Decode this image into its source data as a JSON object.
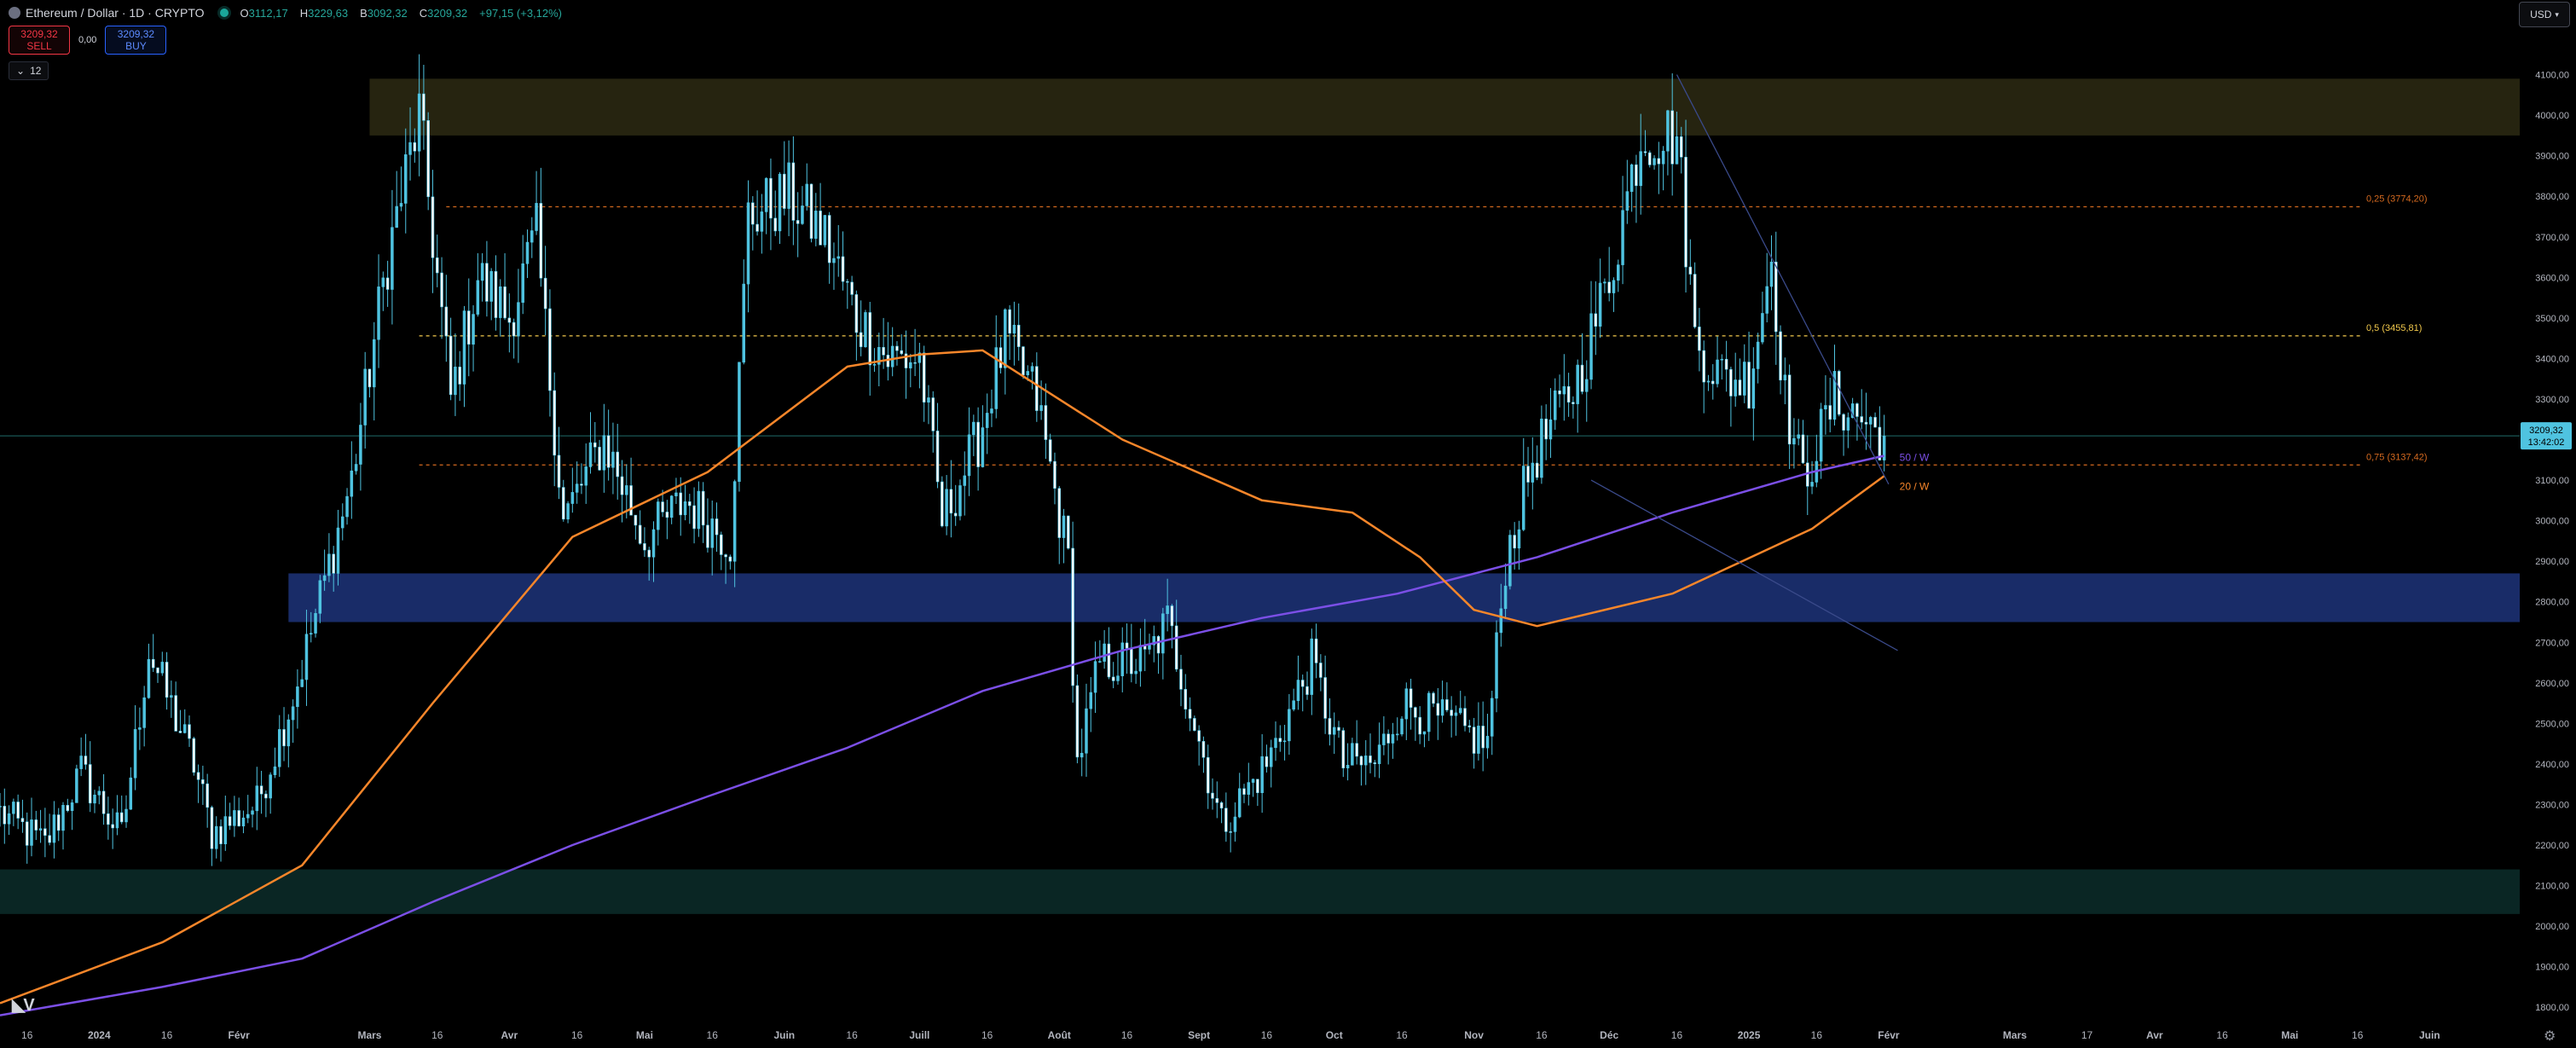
{
  "header": {
    "symbol_title": "Ethereum / Dollar · 1D · CRYPTO",
    "ohlc": [
      {
        "key": "O",
        "value": "3112,17"
      },
      {
        "key": "H",
        "value": "3229,63"
      },
      {
        "key": "B",
        "value": "3092,32"
      },
      {
        "key": "C",
        "value": "3209,32"
      },
      {
        "key": "",
        "value": "+97,15 (+3,12%)"
      }
    ]
  },
  "trade": {
    "sell_price": "3209,32",
    "sell_label": "SELL",
    "spread": "0,00",
    "buy_price": "3209,32",
    "buy_label": "BUY"
  },
  "indicators_toggle": {
    "icon": "chevron-down-icon",
    "count": "12"
  },
  "currency_selector": {
    "label": "USD"
  },
  "colors": {
    "background": "#000000",
    "candle": "#4fc3e0",
    "ma_orange": "#f7862a",
    "ma_purple": "#7b4fe6",
    "zone_top": "#2a2812",
    "zone_mid": "#1a2e6e",
    "zone_bottom": "#0b2a28",
    "fib_025": "#d4691f",
    "fib_05": "#f2c94c",
    "fib_075": "#d4691f",
    "price_badge": "#4fc3e0"
  },
  "chart_data": {
    "type": "candlestick",
    "title": "Ethereum / Dollar · 1D · CRYPTO",
    "ylim": [
      1750,
      4200
    ],
    "x_range": [
      "2023-12-10",
      "2025-06-21"
    ],
    "y_ticks": [
      "1800,00",
      "1900,00",
      "2000,00",
      "2100,00",
      "2200,00",
      "2300,00",
      "2400,00",
      "2500,00",
      "2600,00",
      "2700,00",
      "2800,00",
      "2900,00",
      "3000,00",
      "3100,00",
      "3200,00",
      "3300,00",
      "3400,00",
      "3500,00",
      "3600,00",
      "3700,00",
      "3800,00",
      "3900,00",
      "4000,00",
      "4100,00"
    ],
    "x_ticks": [
      {
        "label": "16",
        "date": "2023-12-16"
      },
      {
        "label": "2024",
        "date": "2024-01-01"
      },
      {
        "label": "16",
        "date": "2024-01-16"
      },
      {
        "label": "Févr",
        "date": "2024-02-01"
      },
      {
        "label": "Mars",
        "date": "2024-03-01"
      },
      {
        "label": "16",
        "date": "2024-03-16"
      },
      {
        "label": "Avr",
        "date": "2024-04-01"
      },
      {
        "label": "16",
        "date": "2024-04-16"
      },
      {
        "label": "Mai",
        "date": "2024-05-01"
      },
      {
        "label": "16",
        "date": "2024-05-16"
      },
      {
        "label": "Juin",
        "date": "2024-06-01"
      },
      {
        "label": "16",
        "date": "2024-06-16"
      },
      {
        "label": "Juill",
        "date": "2024-07-01"
      },
      {
        "label": "16",
        "date": "2024-07-16"
      },
      {
        "label": "Août",
        "date": "2024-08-01"
      },
      {
        "label": "16",
        "date": "2024-08-16"
      },
      {
        "label": "Sept",
        "date": "2024-09-01"
      },
      {
        "label": "16",
        "date": "2024-09-16"
      },
      {
        "label": "Oct",
        "date": "2024-10-01"
      },
      {
        "label": "16",
        "date": "2024-10-16"
      },
      {
        "label": "Nov",
        "date": "2024-11-01"
      },
      {
        "label": "16",
        "date": "2024-11-16"
      },
      {
        "label": "Déc",
        "date": "2024-12-01"
      },
      {
        "label": "16",
        "date": "2024-12-16"
      },
      {
        "label": "2025",
        "date": "2025-01-01"
      },
      {
        "label": "16",
        "date": "2025-01-16"
      },
      {
        "label": "Févr",
        "date": "2025-02-01"
      },
      {
        "label": "Mars",
        "date": "2025-03-01"
      },
      {
        "label": "17",
        "date": "2025-03-17"
      },
      {
        "label": "Avr",
        "date": "2025-04-01"
      },
      {
        "label": "16",
        "date": "2025-04-16"
      },
      {
        "label": "Mai",
        "date": "2025-05-01"
      },
      {
        "label": "16",
        "date": "2025-05-16"
      },
      {
        "label": "Juin",
        "date": "2025-06-01"
      }
    ],
    "price_path": [
      [
        "2023-12-10",
        2280
      ],
      [
        "2023-12-20",
        2200
      ],
      [
        "2023-12-28",
        2380
      ],
      [
        "2024-01-06",
        2220
      ],
      [
        "2024-01-12",
        2680
      ],
      [
        "2024-01-22",
        2400
      ],
      [
        "2024-01-26",
        2230
      ],
      [
        "2024-02-05",
        2300
      ],
      [
        "2024-02-14",
        2600
      ],
      [
        "2024-02-26",
        3100
      ],
      [
        "2024-03-05",
        3650
      ],
      [
        "2024-03-12",
        4000
      ],
      [
        "2024-03-19",
        3300
      ],
      [
        "2024-03-25",
        3600
      ],
      [
        "2024-04-01",
        3500
      ],
      [
        "2024-04-07",
        3700
      ],
      [
        "2024-04-13",
        3000
      ],
      [
        "2024-04-22",
        3200
      ],
      [
        "2024-05-01",
        2950
      ],
      [
        "2024-05-10",
        3050
      ],
      [
        "2024-05-20",
        2950
      ],
      [
        "2024-05-24",
        3750
      ],
      [
        "2024-06-02",
        3800
      ],
      [
        "2024-06-10",
        3700
      ],
      [
        "2024-06-17",
        3500
      ],
      [
        "2024-06-24",
        3400
      ],
      [
        "2024-07-01",
        3400
      ],
      [
        "2024-07-06",
        3000
      ],
      [
        "2024-07-14",
        3200
      ],
      [
        "2024-07-20",
        3450
      ],
      [
        "2024-07-27",
        3300
      ],
      [
        "2024-08-03",
        2900
      ],
      [
        "2024-08-05",
        2400
      ],
      [
        "2024-08-10",
        2650
      ],
      [
        "2024-08-20",
        2650
      ],
      [
        "2024-08-25",
        2750
      ],
      [
        "2024-09-06",
        2250
      ],
      [
        "2024-09-16",
        2400
      ],
      [
        "2024-09-26",
        2650
      ],
      [
        "2024-10-03",
        2400
      ],
      [
        "2024-10-10",
        2400
      ],
      [
        "2024-10-16",
        2550
      ],
      [
        "2024-10-26",
        2500
      ],
      [
        "2024-11-04",
        2450
      ],
      [
        "2024-11-08",
        2900
      ],
      [
        "2024-11-14",
        3150
      ],
      [
        "2024-11-24",
        3350
      ],
      [
        "2024-12-01",
        3600
      ],
      [
        "2024-12-08",
        3950
      ],
      [
        "2024-12-16",
        3950
      ],
      [
        "2024-12-20",
        3450
      ],
      [
        "2024-12-26",
        3350
      ],
      [
        "2025-01-01",
        3350
      ],
      [
        "2025-01-06",
        3650
      ],
      [
        "2025-01-09",
        3300
      ],
      [
        "2025-01-13",
        3100
      ],
      [
        "2025-01-20",
        3300
      ],
      [
        "2025-01-26",
        3250
      ],
      [
        "2025-01-31",
        3209
      ]
    ],
    "last_price": {
      "value": 3209.32,
      "label": "3209,32",
      "countdown": "13:42:02"
    },
    "series": [
      {
        "name": "50 / W",
        "points": [
          [
            "2023-12-10",
            1780
          ],
          [
            "2024-01-15",
            1850
          ],
          [
            "2024-02-15",
            1920
          ],
          [
            "2024-03-15",
            2060
          ],
          [
            "2024-04-15",
            2200
          ],
          [
            "2024-05-15",
            2320
          ],
          [
            "2024-06-15",
            2440
          ],
          [
            "2024-07-15",
            2580
          ],
          [
            "2024-08-15",
            2680
          ],
          [
            "2024-09-15",
            2760
          ],
          [
            "2024-10-15",
            2820
          ],
          [
            "2024-11-15",
            2910
          ],
          [
            "2024-12-15",
            3020
          ],
          [
            "2025-01-15",
            3120
          ],
          [
            "2025-01-31",
            3160
          ]
        ]
      },
      {
        "name": "20 / W",
        "points": [
          [
            "2023-12-10",
            1810
          ],
          [
            "2024-01-15",
            1960
          ],
          [
            "2024-02-15",
            2150
          ],
          [
            "2024-03-15",
            2550
          ],
          [
            "2024-04-15",
            2960
          ],
          [
            "2024-05-15",
            3120
          ],
          [
            "2024-06-15",
            3380
          ],
          [
            "2024-07-01",
            3410
          ],
          [
            "2024-07-15",
            3420
          ],
          [
            "2024-08-15",
            3200
          ],
          [
            "2024-09-15",
            3050
          ],
          [
            "2024-10-05",
            3020
          ],
          [
            "2024-10-20",
            2910
          ],
          [
            "2024-11-01",
            2780
          ],
          [
            "2024-11-15",
            2740
          ],
          [
            "2024-12-15",
            2820
          ],
          [
            "2025-01-15",
            2980
          ],
          [
            "2025-01-31",
            3110
          ]
        ]
      }
    ],
    "zones": [
      {
        "from": 3950,
        "to": 4090,
        "start": "2024-03-01"
      },
      {
        "from": 2750,
        "to": 2870,
        "start": "2024-02-12"
      },
      {
        "from": 2030,
        "to": 2140,
        "start": "2023-12-10"
      }
    ],
    "fib_levels": [
      {
        "ratio": "0,25",
        "value": 3774.2,
        "label": "0,25 (3774,20)",
        "start": "2024-03-18"
      },
      {
        "ratio": "0,5",
        "value": 3455.81,
        "label": "0,5 (3455,81)",
        "start": "2024-03-12"
      },
      {
        "ratio": "0,75",
        "value": 3137.42,
        "label": "0,75 (3137,42)",
        "start": "2024-03-12"
      }
    ],
    "trendlines": [
      {
        "from": [
          "2024-12-16",
          4100
        ],
        "to": [
          "2025-02-01",
          3090
        ]
      },
      {
        "from": [
          "2024-11-27",
          3100
        ],
        "to": [
          "2025-02-03",
          2680
        ]
      }
    ],
    "grid": false
  }
}
